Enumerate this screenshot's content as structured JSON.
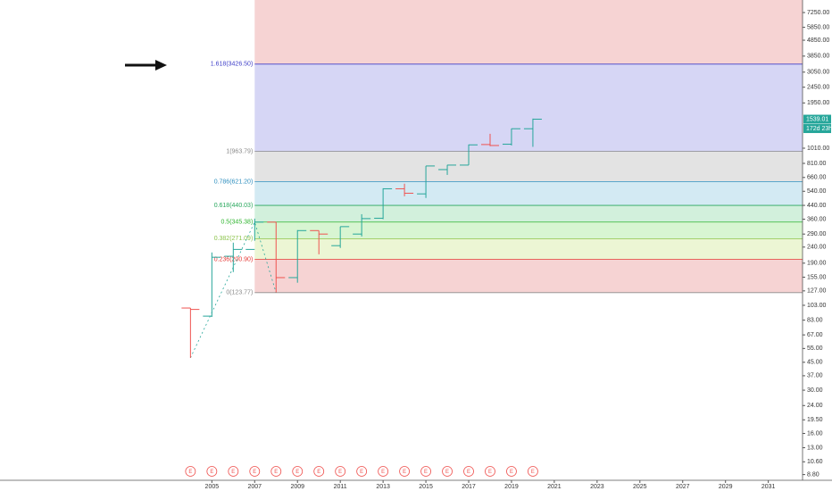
{
  "chart_data": {
    "type": "ohlc",
    "log_scale": true,
    "x": [
      2004,
      2005,
      2006,
      2007,
      2008,
      2009,
      2010,
      2011,
      2012,
      2013,
      2014,
      2015,
      2016,
      2017,
      2018,
      2019,
      2020
    ],
    "open": [
      99,
      88,
      210,
      232,
      345,
      154,
      305,
      245,
      290,
      365,
      560,
      520,
      740,
      790,
      1065,
      1070,
      1340
    ],
    "high": [
      99,
      222,
      256,
      363,
      345,
      307,
      305,
      323,
      387,
      564,
      603,
      780,
      792,
      1065,
      1245,
      1345,
      1553
    ],
    "low": [
      48,
      87,
      167,
      263,
      124,
      143,
      216,
      237,
      280,
      360,
      502,
      490,
      685,
      790,
      1040,
      1050,
      1030
    ],
    "close": [
      97,
      207,
      232,
      345,
      154,
      305,
      290,
      323,
      363,
      560,
      525,
      780,
      790,
      1060,
      1050,
      1340,
      1539.01
    ],
    "up_color": "#26a69a",
    "down_color": "#ef5350",
    "xlim": [
      1995.1,
      2032.6
    ],
    "xticks": [
      2005,
      2007,
      2009,
      2011,
      2013,
      2015,
      2017,
      2019,
      2021,
      2023,
      2025,
      2027,
      2029,
      2031
    ],
    "ylim": [
      8.1,
      8700
    ],
    "yticks": [
      {
        "value": 7250,
        "label": "7250.00"
      },
      {
        "value": 5850,
        "label": "5850.00"
      },
      {
        "value": 4850,
        "label": "4850.00"
      },
      {
        "value": 3850,
        "label": "3850.00"
      },
      {
        "value": 3050,
        "label": "3050.00"
      },
      {
        "value": 2450,
        "label": "2450.00"
      },
      {
        "value": 1950,
        "label": "1950.00"
      },
      {
        "value": 1010,
        "label": "1010.00"
      },
      {
        "value": 810,
        "label": "810.00"
      },
      {
        "value": 660,
        "label": "660.00"
      },
      {
        "value": 540,
        "label": "540.00"
      },
      {
        "value": 440,
        "label": "440.00"
      },
      {
        "value": 360,
        "label": "360.00"
      },
      {
        "value": 290,
        "label": "290.00"
      },
      {
        "value": 240,
        "label": "240.00"
      },
      {
        "value": 190,
        "label": "190.00"
      },
      {
        "value": 155,
        "label": "155.00"
      },
      {
        "value": 127,
        "label": "127.00"
      },
      {
        "value": 103,
        "label": "103.00"
      },
      {
        "value": 83,
        "label": "83.00"
      },
      {
        "value": 67,
        "label": "67.00"
      },
      {
        "value": 55,
        "label": "55.00"
      },
      {
        "value": 45,
        "label": "45.00"
      },
      {
        "value": 37,
        "label": "37.00"
      },
      {
        "value": 30,
        "label": "30.00"
      },
      {
        "value": 24,
        "label": "24.00"
      },
      {
        "value": 19.5,
        "label": "19.50"
      },
      {
        "value": 16,
        "label": "16.00"
      },
      {
        "value": 13,
        "label": "13.00"
      },
      {
        "value": 10.6,
        "label": "10.60"
      },
      {
        "value": 8.8,
        "label": "8.80"
      }
    ],
    "fib_start_x": 2007,
    "fib_levels": [
      {
        "label": "1.618(3426.50)",
        "value": 3426.5,
        "color": "#3f3fc8",
        "fill": "#d6d6f5"
      },
      {
        "label": "1(963.79)",
        "value": 963.79,
        "color": "#8a8a8a",
        "fill": "#e3e3e3"
      },
      {
        "label": "0.786(621.20)",
        "value": 621.2,
        "color": "#2f8fbf",
        "fill": "#d3eaf3"
      },
      {
        "label": "0.618(440.03)",
        "value": 440.03,
        "color": "#26a65b",
        "fill": "#d2f0dc"
      },
      {
        "label": "0.5(345.38)",
        "value": 345.38,
        "color": "#2fb52f",
        "fill": "#d8f5d2"
      },
      {
        "label": "0.382(271.09)",
        "value": 271.09,
        "color": "#8bc34a",
        "fill": "#ecf6d4"
      },
      {
        "label": "0.236(200.90)",
        "value": 200.9,
        "color": "#e53935",
        "fill": "#f6d3d3"
      },
      {
        "label": "0(123.77)",
        "value": 123.77,
        "color": "#8a8a8a",
        "fill": null
      }
    ],
    "top_fill": "#f6d3d3",
    "anchor_line": {
      "x": [
        2004,
        2007,
        2008
      ],
      "values": [
        48,
        345.38,
        123.77
      ]
    },
    "last_price": {
      "value": 1539.01,
      "label": "1539.01"
    },
    "countdown": "172d 23h",
    "event_markers": {
      "label": "E",
      "x": [
        2004,
        2005,
        2006,
        2007,
        2008,
        2009,
        2010,
        2011,
        2012,
        2013,
        2014,
        2015,
        2016,
        2017,
        2018,
        2019,
        2020
      ]
    }
  }
}
